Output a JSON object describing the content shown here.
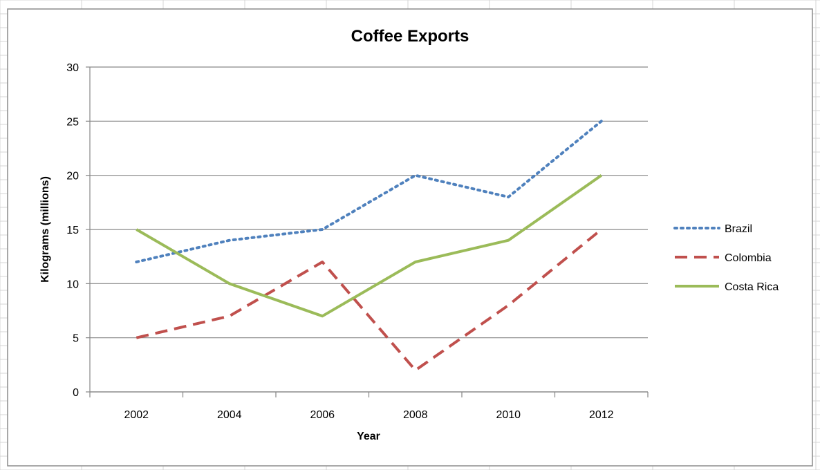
{
  "colors": {
    "brazil": "#4f81bd",
    "colombia": "#c0504d",
    "costa_rica": "#9bbb59",
    "gridline": "#868686",
    "sheet_grid": "#d4d4d4",
    "frame_border": "#8c8c8c"
  },
  "chart_data": {
    "type": "line",
    "title": "Coffee Exports",
    "xlabel": "Year",
    "ylabel": "Kilograms (millions)",
    "categories": [
      "2002",
      "2004",
      "2006",
      "2008",
      "2010",
      "2012"
    ],
    "ylim": [
      0,
      30
    ],
    "yticks": [
      "0",
      "5",
      "10",
      "15",
      "20",
      "25",
      "30"
    ],
    "grid": true,
    "legend_position": "right",
    "series": [
      {
        "name": "Brazil",
        "values": [
          12,
          14,
          15,
          20,
          18,
          25
        ],
        "style": "dotted",
        "color": "#4f81bd"
      },
      {
        "name": "Colombia",
        "values": [
          5,
          7,
          12,
          2,
          8,
          15
        ],
        "style": "dashed",
        "color": "#c0504d"
      },
      {
        "name": "Costa Rica",
        "values": [
          15,
          10,
          7,
          12,
          14,
          20
        ],
        "style": "solid",
        "color": "#9bbb59"
      }
    ]
  }
}
